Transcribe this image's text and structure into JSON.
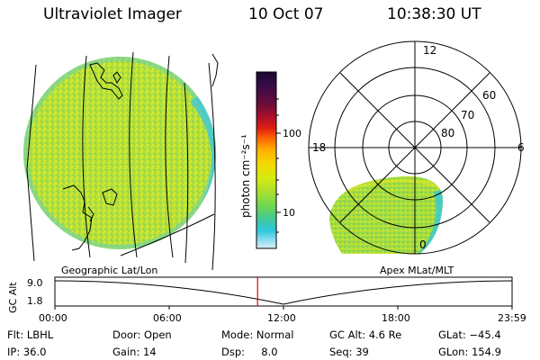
{
  "header": {
    "instrument": "Ultraviolet Imager",
    "date": "10 Oct 07",
    "time": "10:38:30 UT"
  },
  "colorbar": {
    "unit_label": "photon cm⁻²s⁻¹",
    "ticks": [
      {
        "label": "100",
        "value": 100
      },
      {
        "label": "10",
        "value": 10
      }
    ],
    "colors_top_to_bottom": [
      "#1a0a2e",
      "#3a0c4a",
      "#6a0c3a",
      "#b0102a",
      "#e02010",
      "#ff6a00",
      "#ffae00",
      "#f2d800",
      "#d6ea10",
      "#a8e030",
      "#6fd64e",
      "#3ec8a0",
      "#30c8e0",
      "#8adcf0",
      "#d8eef4"
    ]
  },
  "polar_plot": {
    "mlt_labels": [
      {
        "label": "12",
        "angle_deg": 90
      },
      {
        "label": "18",
        "angle_deg": 180
      },
      {
        "label": "6",
        "angle_deg": 0
      },
      {
        "label": "0",
        "angle_deg": 270
      }
    ],
    "lat_labels": [
      "60",
      "70",
      "80"
    ],
    "frame_label": "Apex MLat/MLT"
  },
  "geo_plot": {
    "frame_label": "Geographic Lat/Lon"
  },
  "altitude_plot": {
    "ylabel": "GC Alt",
    "yticks": [
      "9.0",
      "1.8"
    ],
    "xticks": [
      "00:00",
      "06:00",
      "12:00",
      "18:00",
      "23:59"
    ],
    "marker_time_hours": 10.64,
    "marker_color": "#e00000"
  },
  "info": {
    "row1": [
      "Flt: LBHL",
      "Door: Open",
      "Mode: Normal",
      "GC Alt: 4.6 Re",
      "GLat: −45.4"
    ],
    "row2": [
      "IP: 36.0",
      "Gain: 14",
      "Dsp:     8.0",
      "Seq: 39",
      "GLon: 154.9"
    ]
  }
}
